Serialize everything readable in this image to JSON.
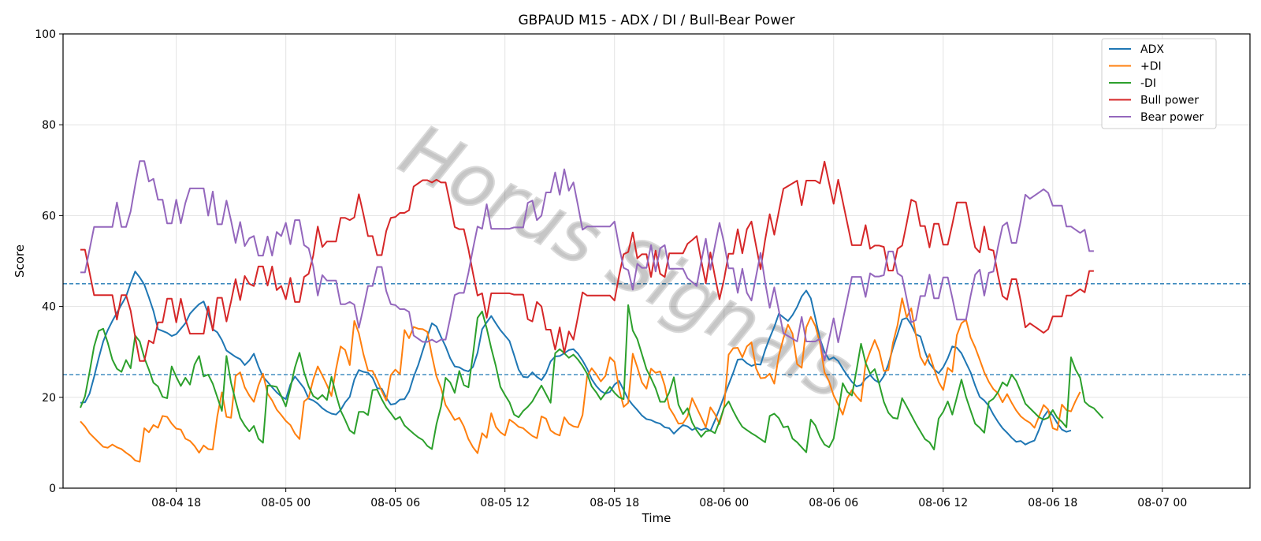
{
  "chart_data": {
    "type": "line",
    "title": "GBPAUD M15 - ADX / DI / Bull-Bear Power",
    "xlabel": "Time",
    "ylabel": "Score",
    "ylim": [
      0,
      100
    ],
    "yticks": [
      0,
      20,
      40,
      60,
      80,
      100
    ],
    "xlim_hours": [
      -3.2,
      61.8
    ],
    "x_start": "08-04 15:45",
    "x_step_minutes": 15,
    "xticks": [
      {
        "hours": 3,
        "label": "08-04 18"
      },
      {
        "hours": 9,
        "label": "08-05 00"
      },
      {
        "hours": 15,
        "label": "08-05 06"
      },
      {
        "hours": 21,
        "label": "08-05 12"
      },
      {
        "hours": 27,
        "label": "08-05 18"
      },
      {
        "hours": 33,
        "label": "08-06 00"
      },
      {
        "hours": 39,
        "label": "08-06 06"
      },
      {
        "hours": 45,
        "label": "08-06 12"
      },
      {
        "hours": 51,
        "label": "08-06 18"
      },
      {
        "hours": 57,
        "label": "08-07 00"
      }
    ],
    "hlines": [
      {
        "value": 45,
        "color": "#1f77b4",
        "style": "dashed"
      },
      {
        "value": 25,
        "color": "#1f77b4",
        "style": "dashed"
      }
    ],
    "grid": true,
    "legend_position": "top-right",
    "watermark": "Horus Signals",
    "series": [
      {
        "name": "ADX",
        "color": "#1f77b4",
        "values": [
          18.8,
          18.9,
          20.8,
          24.5,
          28.6,
          32.3,
          34.8,
          36.8,
          38.6,
          40.4,
          42.2,
          45.1,
          47.7,
          46.4,
          44.8,
          42.0,
          39.0,
          35.0,
          34.6,
          34.2,
          33.5,
          33.9,
          35.1,
          36.3,
          38.4,
          39.5,
          40.5,
          41.1,
          38.4,
          35.0,
          34.3,
          32.6,
          30.3,
          29.6,
          28.9,
          28.4,
          27.1,
          28.1,
          29.6,
          26.8,
          24.5,
          23.4,
          22.2,
          21.1,
          20.2,
          19.6,
          22.8,
          24.6,
          23.3,
          22.0,
          19.7,
          19.3,
          18.6,
          17.6,
          16.9,
          16.4,
          16.2,
          17.2,
          18.9,
          20.1,
          23.9,
          26.0,
          25.6,
          25.4,
          24.3,
          22.0,
          21.9,
          19.9,
          18.4,
          18.6,
          19.5,
          19.6,
          21.3,
          24.5,
          27.1,
          30.3,
          33.4,
          36.3,
          35.6,
          33.3,
          31.2,
          28.6,
          26.8,
          26.6,
          26.0,
          25.7,
          26.7,
          29.8,
          35.0,
          36.5,
          37.9,
          36.3,
          34.8,
          33.6,
          32.4,
          29.3,
          26.1,
          24.5,
          24.4,
          25.5,
          24.5,
          23.8,
          25.3,
          27.9,
          29.0,
          29.1,
          29.7,
          30.4,
          30.6,
          29.6,
          28.1,
          26.3,
          24.0,
          22.5,
          21.4,
          20.8,
          21.2,
          22.8,
          23.6,
          21.6,
          19.6,
          18.3,
          17.2,
          16.0,
          15.2,
          15.0,
          14.5,
          14.2,
          13.4,
          13.2,
          12.0,
          13.0,
          13.9,
          13.6,
          12.8,
          13.3,
          12.8,
          13.2,
          12.6,
          14.9,
          17.5,
          20.2,
          22.8,
          25.4,
          28.3,
          28.4,
          27.5,
          26.9,
          27.3,
          27.2,
          30.4,
          33.1,
          35.5,
          38.4,
          37.6,
          36.8,
          38.1,
          39.9,
          42.2,
          43.5,
          41.8,
          37.4,
          32.9,
          30.0,
          28.3,
          28.8,
          28.0,
          26.3,
          24.8,
          23.4,
          22.4,
          22.7,
          24.1,
          24.9,
          23.8,
          23.2,
          24.7,
          27.3,
          30.9,
          33.9,
          37.1,
          37.5,
          36.0,
          33.9,
          33.4,
          30.1,
          27.5,
          26.2,
          25.3,
          26.6,
          28.6,
          31.2,
          30.9,
          29.7,
          27.6,
          25.5,
          22.6,
          20.1,
          19.3,
          18.1,
          16.2,
          14.6,
          13.2,
          12.2,
          11.1,
          10.2,
          10.4,
          9.6,
          10.1,
          10.5,
          12.9,
          15.7,
          17.1,
          16.0,
          14.3,
          12.9,
          12.4,
          12.7
        ]
      },
      {
        "name": "+DI",
        "color": "#ff7f0e",
        "values": [
          14.7,
          13.6,
          12.1,
          11.1,
          10.1,
          9.1,
          8.9,
          9.6,
          9.0,
          8.6,
          7.8,
          7.1,
          6.1,
          5.8,
          13.2,
          12.3,
          13.9,
          13.3,
          15.9,
          15.7,
          14.2,
          13.1,
          12.9,
          10.9,
          10.4,
          9.3,
          7.8,
          9.4,
          8.6,
          8.5,
          15.9,
          21.1,
          15.7,
          15.5,
          24.7,
          25.5,
          22.2,
          20.4,
          19.0,
          22.6,
          25.2,
          20.8,
          19.3,
          17.3,
          16.1,
          14.8,
          13.9,
          12.0,
          10.8,
          19.1,
          19.9,
          23.9,
          26.8,
          24.8,
          22.7,
          20.3,
          26.2,
          31.2,
          30.4,
          27.1,
          36.8,
          34.1,
          29.5,
          25.9,
          25.8,
          23.8,
          21.4,
          19.3,
          24.9,
          26.1,
          25.1,
          34.8,
          33.0,
          35.5,
          35.1,
          35.0,
          34.4,
          29.2,
          24.6,
          22.0,
          18.3,
          16.7,
          15.0,
          15.5,
          13.6,
          10.8,
          9.0,
          7.7,
          12.1,
          11.1,
          16.5,
          13.5,
          12.3,
          11.6,
          15.1,
          14.4,
          13.5,
          13.2,
          12.3,
          11.5,
          11.0,
          15.8,
          15.3,
          12.7,
          12.0,
          11.6,
          15.6,
          14.2,
          13.6,
          13.4,
          16.1,
          24.6,
          26.4,
          25.1,
          23.5,
          24.7,
          28.8,
          27.8,
          21.9,
          17.9,
          18.8,
          29.6,
          26.6,
          23.3,
          21.9,
          26.3,
          25.4,
          25.7,
          22.6,
          17.7,
          16.1,
          14.2,
          14.3,
          15.8,
          19.8,
          17.7,
          15.6,
          13.4,
          17.8,
          16.3,
          14.1,
          17.9,
          29.4,
          30.8,
          30.9,
          28.8,
          31.2,
          32.1,
          26.4,
          24.2,
          24.3,
          25.2,
          23.0,
          29.2,
          33.0,
          36.0,
          34.0,
          27.3,
          26.5,
          35.4,
          37.7,
          35.7,
          32.0,
          25.5,
          23.5,
          20.4,
          18.4,
          16.2,
          19.8,
          21.6,
          20.2,
          19.1,
          27.4,
          30.1,
          32.6,
          30.1,
          25.8,
          26.0,
          32.0,
          35.9,
          41.8,
          37.6,
          39.6,
          33.8,
          28.9,
          27.1,
          29.5,
          26.3,
          23.4,
          21.6,
          26.5,
          25.6,
          33.7,
          36.3,
          37.1,
          33.2,
          31.0,
          28.3,
          25.5,
          23.4,
          21.8,
          20.9,
          18.9,
          20.7,
          18.8,
          17.1,
          15.8,
          15.0,
          14.4,
          13.3,
          15.8,
          18.3,
          17.3,
          13.2,
          12.8,
          18.4,
          17.2,
          16.9,
          19.2,
          21.2
        ]
      },
      {
        "name": "-DI",
        "color": "#2ca02c",
        "values": [
          17.7,
          20.2,
          25.5,
          31.2,
          34.6,
          35.1,
          32.0,
          28.3,
          26.3,
          25.6,
          28.2,
          26.4,
          33.6,
          32.3,
          28.7,
          26.1,
          23.2,
          22.4,
          20.1,
          19.8,
          26.8,
          24.5,
          22.5,
          24.3,
          22.8,
          27.2,
          29.1,
          24.6,
          25.0,
          23.0,
          20.0,
          17.0,
          29.1,
          23.2,
          19.2,
          15.5,
          13.8,
          12.5,
          13.7,
          10.9,
          10.0,
          22.6,
          22.5,
          22.3,
          20.3,
          18.0,
          22.1,
          26.6,
          29.8,
          25.5,
          22.4,
          20.3,
          19.6,
          20.5,
          19.4,
          24.5,
          20.6,
          17.1,
          15.0,
          12.7,
          12.0,
          16.8,
          16.8,
          16.1,
          21.6,
          21.7,
          19.6,
          17.8,
          16.5,
          15.1,
          15.7,
          13.8,
          12.9,
          12.0,
          11.2,
          10.6,
          9.3,
          8.6,
          14.1,
          18.0,
          24.3,
          23.3,
          21.0,
          25.8,
          22.7,
          22.2,
          29.4,
          37.5,
          38.9,
          35.2,
          30.8,
          26.9,
          22.3,
          20.5,
          18.9,
          16.2,
          15.6,
          17.0,
          17.9,
          19.1,
          20.9,
          22.6,
          20.7,
          18.8,
          29.7,
          30.6,
          29.7,
          28.7,
          29.4,
          28.3,
          26.9,
          25.2,
          22.4,
          21.1,
          19.5,
          20.9,
          22.3,
          21.0,
          20.0,
          19.6,
          40.3,
          34.7,
          32.8,
          29.5,
          26.2,
          24.2,
          22.0,
          19.0,
          19.0,
          21.1,
          24.4,
          18.4,
          16.3,
          17.6,
          14.5,
          12.7,
          11.3,
          12.5,
          12.7,
          12.1,
          14.7,
          17.7,
          19.1,
          17.0,
          15.1,
          13.5,
          12.8,
          12.1,
          11.5,
          10.8,
          10.1,
          15.9,
          16.4,
          15.4,
          13.4,
          13.6,
          10.9,
          10.1,
          9.0,
          7.9,
          15.1,
          13.8,
          11.3,
          9.6,
          9.0,
          10.9,
          16.6,
          23.1,
          21.2,
          20.4,
          25.9,
          31.8,
          27.6,
          25.2,
          26.2,
          22.9,
          19.0,
          16.6,
          15.5,
          15.3,
          19.8,
          18.0,
          16.1,
          14.2,
          12.5,
          10.8,
          10.1,
          8.5,
          15.3,
          16.8,
          19.1,
          16.2,
          20.0,
          23.9,
          20.1,
          17.1,
          14.2,
          13.3,
          12.2,
          19.0,
          19.7,
          21.1,
          23.3,
          22.5,
          25.0,
          23.6,
          21.2,
          18.6,
          17.6,
          16.6,
          15.6,
          15.1,
          15.5,
          17.2,
          15.5,
          14.6,
          13.4,
          28.8,
          26.1,
          24.3,
          19.0,
          18.1,
          17.6,
          16.5,
          15.4
        ]
      },
      {
        "name": "Bull power",
        "color": "#d62728",
        "values": [
          52.5,
          52.5,
          47.5,
          42.5,
          42.5,
          42.5,
          42.5,
          42.5,
          37.1,
          42.5,
          42.5,
          39.1,
          33.3,
          28.0,
          28.0,
          32.5,
          31.9,
          36.5,
          36.5,
          41.7,
          41.7,
          36.5,
          41.7,
          37.2,
          34.0,
          34.0,
          34.0,
          34.0,
          40.0,
          34.7,
          41.9,
          41.9,
          36.7,
          41.1,
          46.0,
          41.4,
          46.7,
          45.0,
          44.5,
          48.8,
          48.8,
          44.6,
          48.8,
          43.6,
          44.5,
          41.6,
          46.3,
          41.0,
          41.0,
          46.5,
          47.2,
          51.2,
          57.6,
          53.1,
          54.3,
          54.3,
          54.3,
          59.5,
          59.5,
          59.0,
          59.6,
          64.7,
          60.3,
          55.5,
          55.5,
          51.3,
          51.3,
          56.6,
          59.5,
          59.7,
          60.6,
          60.6,
          61.2,
          66.4,
          67.1,
          67.8,
          67.8,
          67.3,
          67.9,
          67.3,
          67.3,
          62.6,
          57.5,
          57.0,
          57.0,
          52.6,
          47.3,
          42.4,
          42.9,
          37.5,
          42.9,
          42.9,
          42.9,
          42.9,
          42.9,
          42.6,
          42.6,
          42.6,
          37.2,
          36.7,
          41.0,
          40.0,
          34.9,
          34.9,
          30.5,
          35.4,
          29.8,
          34.5,
          32.7,
          37.8,
          43.1,
          42.4,
          42.4,
          42.4,
          42.4,
          42.4,
          42.4,
          41.3,
          46.8,
          51.5,
          52.0,
          56.3,
          50.6,
          51.5,
          51.5,
          46.5,
          52.3,
          47.2,
          46.5,
          51.7,
          51.7,
          51.7,
          51.7,
          53.8,
          54.6,
          55.5,
          50.1,
          45.1,
          51.9,
          46.6,
          41.6,
          46.0,
          51.6,
          51.6,
          57.0,
          51.7,
          57.0,
          58.7,
          53.4,
          48.2,
          54.7,
          60.3,
          55.8,
          60.9,
          65.9,
          66.5,
          67.1,
          67.7,
          62.3,
          67.7,
          67.7,
          67.7,
          67.1,
          71.9,
          67.2,
          62.6,
          67.9,
          63.1,
          58.3,
          53.5,
          53.5,
          53.5,
          57.9,
          52.7,
          53.4,
          53.4,
          53.1,
          47.9,
          47.9,
          52.7,
          53.4,
          58.3,
          63.5,
          63.0,
          57.7,
          57.7,
          53.0,
          58.2,
          58.2,
          53.6,
          53.6,
          58.1,
          62.9,
          62.9,
          62.9,
          57.7,
          53.0,
          51.9,
          57.6,
          52.6,
          52.3,
          46.9,
          42.3,
          41.5,
          46.0,
          46.0,
          41.1,
          35.4,
          36.3,
          35.6,
          34.9,
          34.2,
          35.0,
          37.8,
          37.8,
          37.8,
          42.4,
          42.4,
          43.1,
          43.8,
          43.1,
          47.8,
          47.8
        ]
      },
      {
        "name": "Bear power",
        "color": "#9467bd",
        "values": [
          47.5,
          47.5,
          52.5,
          57.5,
          57.5,
          57.5,
          57.5,
          57.5,
          62.9,
          57.5,
          57.5,
          60.9,
          66.7,
          72.0,
          72.0,
          67.5,
          68.1,
          63.5,
          63.5,
          58.3,
          58.3,
          63.5,
          58.3,
          62.8,
          66.0,
          66.0,
          66.0,
          66.0,
          60.0,
          65.3,
          58.1,
          58.1,
          63.3,
          58.9,
          54.0,
          58.6,
          53.3,
          55.0,
          55.5,
          51.2,
          51.2,
          55.4,
          51.2,
          56.4,
          55.5,
          58.4,
          53.7,
          59.0,
          59.0,
          53.5,
          52.8,
          48.8,
          42.4,
          46.9,
          45.7,
          45.7,
          45.7,
          40.5,
          40.5,
          41.0,
          40.4,
          35.3,
          39.7,
          44.5,
          44.5,
          48.7,
          48.7,
          43.4,
          40.5,
          40.3,
          39.4,
          39.4,
          38.8,
          33.6,
          32.9,
          32.2,
          32.2,
          32.7,
          32.1,
          32.7,
          32.7,
          37.4,
          42.5,
          43.0,
          43.0,
          47.4,
          52.7,
          57.6,
          57.1,
          62.5,
          57.1,
          57.1,
          57.1,
          57.1,
          57.1,
          57.4,
          57.4,
          57.4,
          62.8,
          63.3,
          59.0,
          60.0,
          65.1,
          65.1,
          69.5,
          64.6,
          70.2,
          65.5,
          67.3,
          62.2,
          56.9,
          57.6,
          57.6,
          57.6,
          57.6,
          57.6,
          57.6,
          58.7,
          53.2,
          48.5,
          48.0,
          43.7,
          49.4,
          48.5,
          48.5,
          53.5,
          47.7,
          52.8,
          53.5,
          48.3,
          48.3,
          48.3,
          48.3,
          46.2,
          45.4,
          44.5,
          49.9,
          54.9,
          48.1,
          53.4,
          58.4,
          54.0,
          48.4,
          48.4,
          43.0,
          48.3,
          43.0,
          41.3,
          46.6,
          51.8,
          45.3,
          39.7,
          44.2,
          39.1,
          34.1,
          33.5,
          32.9,
          32.3,
          37.7,
          32.3,
          32.3,
          32.3,
          32.9,
          28.1,
          32.8,
          37.4,
          32.1,
          36.9,
          41.7,
          46.5,
          46.5,
          46.5,
          42.1,
          47.3,
          46.6,
          46.6,
          46.9,
          52.1,
          52.1,
          47.3,
          46.6,
          41.7,
          36.5,
          37.0,
          42.3,
          42.3,
          47.0,
          41.8,
          41.8,
          46.4,
          46.4,
          41.9,
          37.1,
          37.1,
          37.1,
          42.3,
          47.0,
          48.1,
          42.4,
          47.4,
          47.7,
          53.1,
          57.7,
          58.5,
          54.0,
          54.0,
          58.9,
          64.6,
          63.7,
          64.4,
          65.1,
          65.8,
          65.0,
          62.2,
          62.2,
          62.2,
          57.6,
          57.6,
          56.9,
          56.2,
          56.9,
          52.2,
          52.2
        ]
      }
    ]
  }
}
